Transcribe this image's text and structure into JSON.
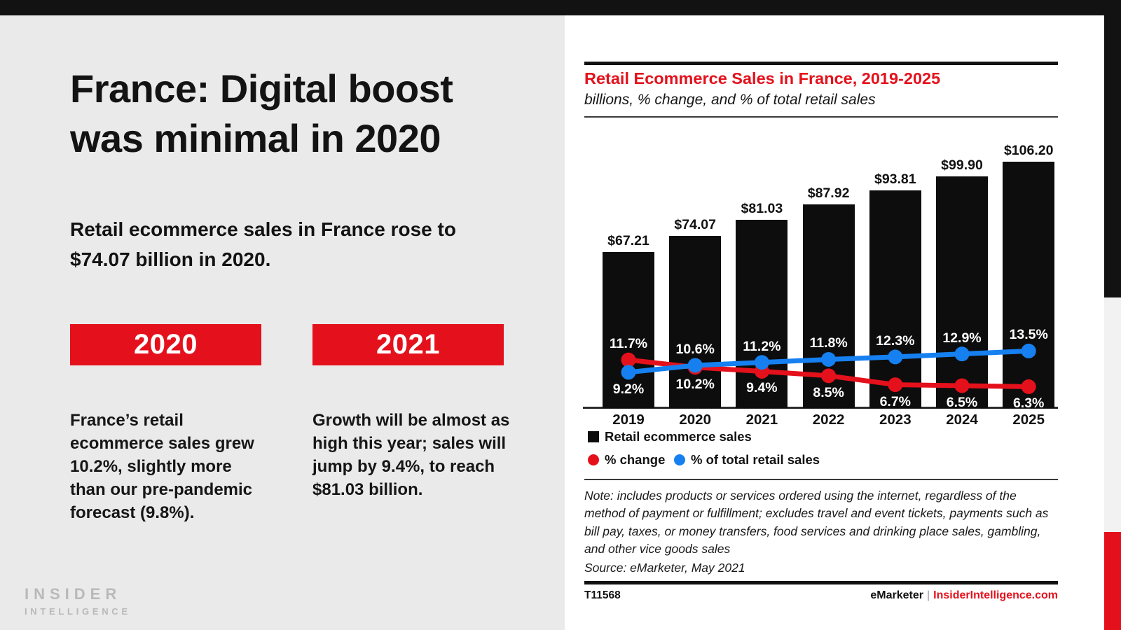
{
  "slide": {
    "title": "France: Digital boost was minimal in 2020",
    "subtitle": "Retail ecommerce sales in France rose to $74.07 billion in 2020.",
    "badges": [
      {
        "year": "2020",
        "text": "France’s retail ecommerce sales grew 10.2%, slightly more than our pre-pandemic forecast (9.8%)."
      },
      {
        "year": "2021",
        "text": "Growth will be almost as high this year; sales will jump by 9.4%, to reach $81.03 billion."
      }
    ],
    "logo": {
      "line1": "INSIDER",
      "line2": "INTELLIGENCE"
    }
  },
  "colors": {
    "accent_red": "#e4111c",
    "line_blue": "#1680f0",
    "bar_black": "#0d0d0d",
    "top_bar": "#121212",
    "slide_bg": "#eaeaea",
    "panel_bg": "#ffffff",
    "logo_gray": "#b9b9b9"
  },
  "chart": {
    "title": "Retail Ecommerce Sales in France, 2019-2025",
    "subtitle": "billions, % change, and % of total retail sales",
    "note": "Note: includes products or services ordered using the internet, regardless of the method of payment or fulfillment; excludes travel and event tickets, payments such as bill pay, taxes, or money transfers, food services and drinking place sales, gambling, and other vice goods sales",
    "source": "Source: eMarketer, May 2021",
    "footer_left": "T11568",
    "footer_brand": "eMarketer",
    "footer_sep": "|",
    "footer_site": "InsiderIntelligence.com"
  },
  "chart_data": {
    "type": "bar",
    "subtype": "bar-with-two-lines",
    "categories": [
      "2019",
      "2020",
      "2021",
      "2022",
      "2023",
      "2024",
      "2025"
    ],
    "title": "Retail Ecommerce Sales in France, 2019-2025",
    "xlabel": "",
    "ylabel": "billions, % change, and % of total retail sales",
    "grid": false,
    "legend_position": "bottom",
    "series": [
      {
        "name": "Retail ecommerce sales",
        "type": "bar",
        "unit": "USD billions",
        "values": [
          67.21,
          74.07,
          81.03,
          87.92,
          93.81,
          99.9,
          106.2
        ],
        "labels": [
          "$67.21",
          "$74.07",
          "$81.03",
          "$87.92",
          "$93.81",
          "$99.90",
          "$106.20"
        ]
      },
      {
        "name": "% change",
        "type": "line",
        "color_key": "accent_red",
        "values": [
          11.7,
          10.2,
          9.4,
          8.5,
          6.7,
          6.5,
          6.3
        ],
        "labels": [
          "11.7%",
          "10.2%",
          "9.4%",
          "8.5%",
          "6.7%",
          "6.5%",
          "6.3%"
        ],
        "label_position": [
          "above",
          "below",
          "below",
          "below",
          "below",
          "below",
          "below"
        ]
      },
      {
        "name": "% of total retail sales",
        "type": "line",
        "color_key": "line_blue",
        "values": [
          9.2,
          10.6,
          11.2,
          11.8,
          12.3,
          12.9,
          13.5
        ],
        "labels": [
          "9.2%",
          "10.6%",
          "11.2%",
          "11.8%",
          "12.3%",
          "12.9%",
          "13.5%"
        ],
        "label_position": [
          "below",
          "above",
          "above",
          "above",
          "above",
          "above",
          "above"
        ]
      }
    ]
  }
}
